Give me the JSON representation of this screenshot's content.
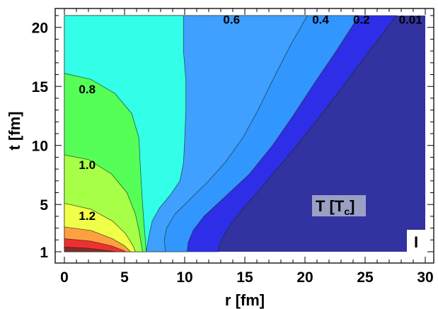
{
  "chart_data": {
    "type": "contour",
    "quantity_label": "T [Tc]",
    "quantity_main": "T [T",
    "quantity_sub": "c",
    "quantity_close": "]",
    "panel_label": "I",
    "xlabel": "r [fm]",
    "ylabel": "t [fm]",
    "xlim": [
      0,
      30
    ],
    "ylim": [
      1,
      21
    ],
    "x_ticks": [
      0,
      5,
      10,
      15,
      20,
      25,
      30
    ],
    "y_ticks": [
      1,
      5,
      10,
      15,
      20
    ],
    "x_tick_labels": [
      "0",
      "5",
      "10",
      "15",
      "20",
      "25",
      "30"
    ],
    "y_tick_labels": [
      "1",
      "5",
      "10",
      "15",
      "20"
    ],
    "contour_levels": [
      0.01,
      0.2,
      0.4,
      0.6,
      0.8,
      1.0,
      1.2
    ],
    "labeled_levels": [
      "0.6",
      "0.4",
      "0.2",
      "0.01",
      "0.8",
      "1.0",
      "1.2"
    ],
    "bands": [
      {
        "range": "below 0.01",
        "color": "#3232a0",
        "boundary": [
          [
            30,
            1
          ],
          [
            30,
            21
          ]
        ]
      },
      {
        "range": "0.01-0.2",
        "color": "#2e2ee8",
        "boundary": [
          [
            12.8,
            1
          ],
          [
            12.9,
            1.6
          ],
          [
            13.2,
            2.3
          ],
          [
            13.8,
            3.3
          ],
          [
            14.8,
            4.6
          ],
          [
            16.5,
            6.6
          ],
          [
            18.5,
            9
          ],
          [
            20.5,
            11.5
          ],
          [
            23,
            14.8
          ],
          [
            25.2,
            17.8
          ],
          [
            27.6,
            21
          ]
        ]
      },
      {
        "range": "0.2-0.4",
        "color": "#3296ff",
        "boundary": [
          [
            10.2,
            1
          ],
          [
            10.3,
            1.8
          ],
          [
            10.7,
            2.8
          ],
          [
            11.6,
            4
          ],
          [
            13.3,
            5.6
          ],
          [
            15.4,
            7.6
          ],
          [
            17.3,
            10
          ],
          [
            19,
            12.5
          ],
          [
            20.8,
            15.3
          ],
          [
            22.6,
            18
          ],
          [
            24.5,
            21
          ]
        ]
      },
      {
        "range": "0.4-0.6",
        "color": "#3fa0ff",
        "boundary": [
          [
            8.4,
            1
          ],
          [
            8.3,
            2
          ],
          [
            8.5,
            3
          ],
          [
            9.2,
            4.2
          ],
          [
            10.4,
            5.4
          ],
          [
            11.9,
            6.9
          ],
          [
            13.4,
            8.6
          ],
          [
            14.8,
            10.6
          ],
          [
            16,
            12.8
          ],
          [
            17.3,
            15.5
          ],
          [
            18.8,
            18.5
          ],
          [
            20.2,
            21
          ]
        ]
      },
      {
        "range": "0.6-0.8",
        "color": "#33ffe8",
        "boundary": [
          [
            6.8,
            1
          ],
          [
            6.9,
            1.6
          ],
          [
            7.1,
            2.7
          ],
          [
            7.3,
            3.6
          ],
          [
            7.9,
            4.7
          ],
          [
            8.8,
            5.8
          ],
          [
            9.6,
            7
          ],
          [
            9.9,
            8.5
          ],
          [
            10,
            10.5
          ],
          [
            10.1,
            13
          ],
          [
            10.1,
            15.5
          ],
          [
            9.9,
            18
          ],
          [
            9.9,
            21
          ]
        ]
      },
      {
        "range": "0.8-1.0",
        "color": "#55ff58",
        "boundary": [
          [
            0,
            16.1
          ],
          [
            2.2,
            15.6
          ],
          [
            4.2,
            14.4
          ],
          [
            5.6,
            12.7
          ],
          [
            6.2,
            10.6
          ],
          [
            6.3,
            8.4
          ],
          [
            6.4,
            6.6
          ],
          [
            6.5,
            5
          ],
          [
            6.6,
            3.6
          ],
          [
            6.7,
            2.4
          ],
          [
            6.8,
            1
          ]
        ]
      },
      {
        "range": "1.0-1.2",
        "color": "#a8ff48",
        "boundary": [
          [
            0,
            9.2
          ],
          [
            2,
            8.8
          ],
          [
            3.9,
            7.6
          ],
          [
            5.2,
            6
          ],
          [
            5.9,
            4.2
          ],
          [
            6.2,
            2.8
          ],
          [
            6.4,
            1.6
          ],
          [
            6.5,
            1
          ]
        ]
      },
      {
        "range": "1.2-1.4",
        "color": "#f0ff48",
        "boundary": [
          [
            0,
            5.1
          ],
          [
            2.2,
            4.6
          ],
          [
            4,
            3.6
          ],
          [
            5.1,
            2.5
          ],
          [
            5.7,
            1.5
          ],
          [
            5.9,
            1
          ]
        ]
      },
      {
        "range": "1.4-1.6",
        "color": "#ffa040",
        "boundary": [
          [
            0,
            3.1
          ],
          [
            2.2,
            2.8
          ],
          [
            4,
            2.1
          ],
          [
            5,
            1.5
          ],
          [
            5.5,
            1
          ]
        ]
      },
      {
        "range": "1.6-1.8",
        "color": "#f03030",
        "boundary": [
          [
            0,
            2.1
          ],
          [
            2.2,
            1.9
          ],
          [
            3.9,
            1.5
          ],
          [
            4.9,
            1.1
          ],
          [
            5.1,
            1
          ]
        ]
      },
      {
        "range": "above 1.8",
        "color": "#8a2a2a",
        "boundary": [
          [
            0,
            1.4
          ],
          [
            2,
            1.3
          ],
          [
            3.5,
            1.1
          ],
          [
            4.3,
            1
          ]
        ]
      }
    ],
    "contour_label_positions": [
      {
        "text": "0.6",
        "x": 13.2,
        "y": 20.3
      },
      {
        "text": "0.4",
        "x": 20.6,
        "y": 20.3
      },
      {
        "text": "0.2",
        "x": 24.0,
        "y": 20.3
      },
      {
        "text": "0.01",
        "x": 27.8,
        "y": 20.3
      },
      {
        "text": "0.8",
        "x": 1.2,
        "y": 14.4
      },
      {
        "text": "1.0",
        "x": 1.2,
        "y": 8.0
      },
      {
        "text": "1.2",
        "x": 1.2,
        "y": 3.7
      }
    ],
    "legend_box_color": "#9aa0c4",
    "grid": false
  }
}
